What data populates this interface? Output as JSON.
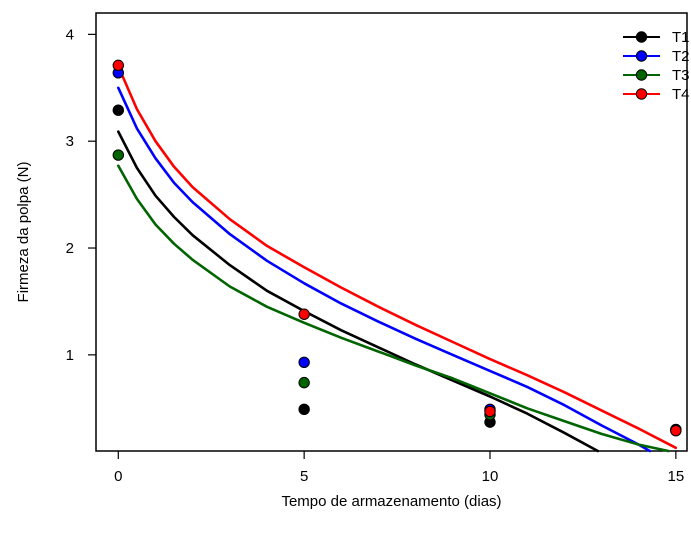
{
  "chart_data": {
    "type": "scatter",
    "title": "",
    "xlabel": "Tempo de armazenamento (dias)",
    "ylabel": "Firmeza da polpa (N)",
    "xlim": [
      -0.6,
      15.3
    ],
    "ylim": [
      0.1,
      4.2
    ],
    "xticks": [
      0,
      5,
      10,
      15
    ],
    "yticks": [
      1,
      2,
      3,
      4
    ],
    "grid": false,
    "legend_position": "top-right",
    "series": [
      {
        "name": "T1",
        "color": "#000000",
        "points": [
          [
            0,
            3.29
          ],
          [
            5,
            0.49
          ],
          [
            10,
            0.37
          ],
          [
            15,
            0.3
          ]
        ],
        "curve": [
          [
            0,
            3.09
          ],
          [
            0.5,
            2.75
          ],
          [
            1,
            2.49
          ],
          [
            1.5,
            2.29
          ],
          [
            2,
            2.12
          ],
          [
            3,
            1.84
          ],
          [
            4,
            1.6
          ],
          [
            5,
            1.41
          ],
          [
            6,
            1.23
          ],
          [
            7,
            1.07
          ],
          [
            8,
            0.91
          ],
          [
            9,
            0.76
          ],
          [
            10,
            0.61
          ],
          [
            11,
            0.45
          ],
          [
            12,
            0.27
          ],
          [
            12.9,
            0.1
          ]
        ]
      },
      {
        "name": "T2",
        "color": "#0000ff",
        "points": [
          [
            0,
            3.64
          ],
          [
            5,
            0.93
          ],
          [
            10,
            0.49
          ],
          [
            15,
            0.3
          ]
        ],
        "curve": [
          [
            0,
            3.5
          ],
          [
            0.5,
            3.12
          ],
          [
            1,
            2.84
          ],
          [
            1.5,
            2.61
          ],
          [
            2,
            2.43
          ],
          [
            3,
            2.13
          ],
          [
            4,
            1.88
          ],
          [
            5,
            1.67
          ],
          [
            6,
            1.48
          ],
          [
            7,
            1.31
          ],
          [
            8,
            1.15
          ],
          [
            9,
            1.0
          ],
          [
            10,
            0.85
          ],
          [
            11,
            0.7
          ],
          [
            12,
            0.53
          ],
          [
            13,
            0.34
          ],
          [
            14,
            0.16
          ],
          [
            14.3,
            0.1
          ]
        ]
      },
      {
        "name": "T3",
        "color": "#006400",
        "points": [
          [
            0,
            2.87
          ],
          [
            5,
            0.74
          ],
          [
            10,
            0.44
          ],
          [
            15,
            0.3
          ]
        ],
        "curve": [
          [
            0,
            2.77
          ],
          [
            0.5,
            2.46
          ],
          [
            1,
            2.22
          ],
          [
            1.5,
            2.04
          ],
          [
            2,
            1.89
          ],
          [
            3,
            1.64
          ],
          [
            4,
            1.45
          ],
          [
            5,
            1.3
          ],
          [
            6,
            1.16
          ],
          [
            7,
            1.03
          ],
          [
            8,
            0.9
          ],
          [
            9,
            0.78
          ],
          [
            10,
            0.64
          ],
          [
            11,
            0.5
          ],
          [
            12,
            0.38
          ],
          [
            13,
            0.26
          ],
          [
            14,
            0.16
          ],
          [
            14.8,
            0.1
          ]
        ]
      },
      {
        "name": "T4",
        "color": "#ff0000",
        "points": [
          [
            0,
            3.71
          ],
          [
            5,
            1.38
          ],
          [
            10,
            0.47
          ],
          [
            15,
            0.29
          ]
        ],
        "curve": [
          [
            0,
            3.7
          ],
          [
            0.5,
            3.3
          ],
          [
            1,
            3.0
          ],
          [
            1.5,
            2.76
          ],
          [
            2,
            2.57
          ],
          [
            3,
            2.27
          ],
          [
            4,
            2.02
          ],
          [
            5,
            1.82
          ],
          [
            6,
            1.63
          ],
          [
            7,
            1.45
          ],
          [
            8,
            1.28
          ],
          [
            9,
            1.12
          ],
          [
            10,
            0.96
          ],
          [
            11,
            0.81
          ],
          [
            12,
            0.65
          ],
          [
            13,
            0.48
          ],
          [
            14,
            0.31
          ],
          [
            15,
            0.13
          ]
        ]
      }
    ]
  }
}
